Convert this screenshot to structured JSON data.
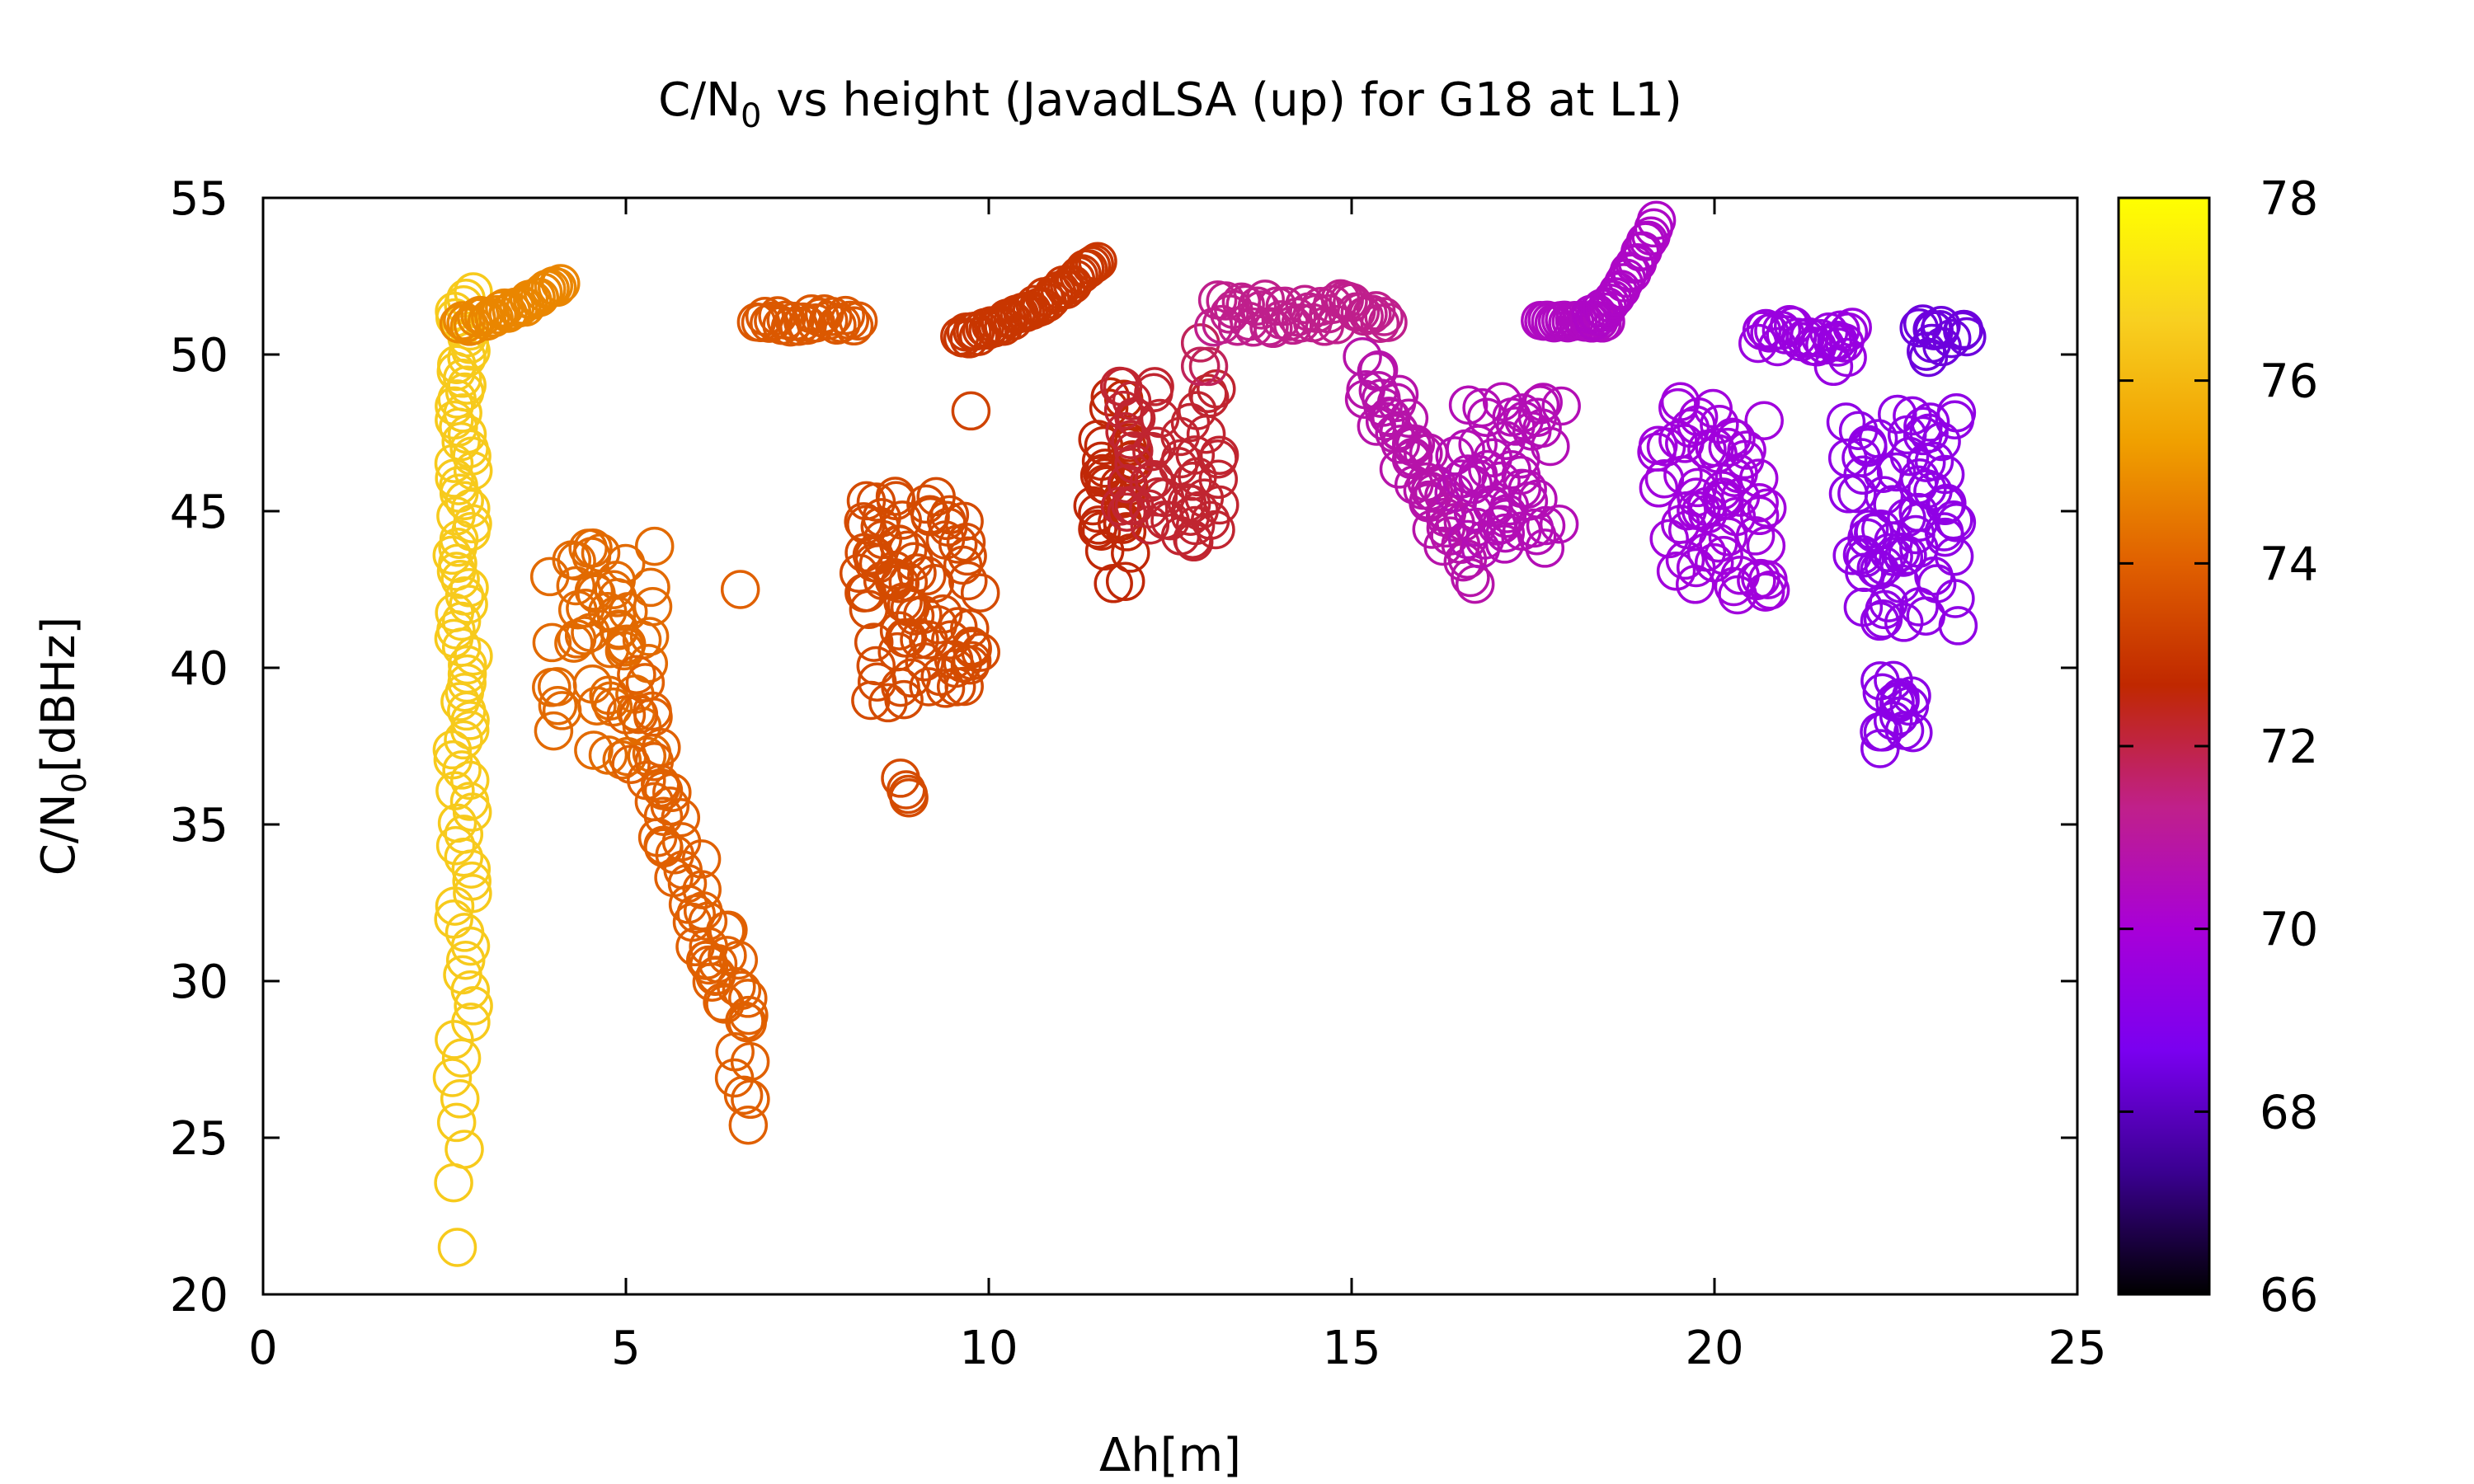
{
  "chart_data": {
    "type": "scatter",
    "title_main": "C/N",
    "title_sub": "0",
    "title_rest": " vs height (JavadLSA (up) for G18 at L1)",
    "xlabel": "Δh[m]",
    "ylabel_main": "C/N",
    "ylabel_sub": "0",
    "ylabel_rest": "[dBHz]",
    "xlim": [
      0,
      25
    ],
    "ylim": [
      20,
      55
    ],
    "xticks": [
      "0",
      "5",
      "10",
      "15",
      "20",
      "25"
    ],
    "yticks": [
      "20",
      "25",
      "30",
      "35",
      "40",
      "45",
      "50",
      "55"
    ],
    "colorbar_range": [
      66,
      78
    ],
    "colorbar_ticks": [
      "66",
      "68",
      "70",
      "72",
      "74",
      "76",
      "78"
    ],
    "colormap": [
      "#000000",
      "#3a0090",
      "#7a00f0",
      "#a800d8",
      "#c0208a",
      "#c02800",
      "#e06000",
      "#f0a000",
      "#f8d020",
      "#ffff00"
    ],
    "grid": false,
    "legend": "none",
    "marker": "open-circle",
    "clusters": [
      {
        "x": [
          2.6,
          2.9
        ],
        "y": [
          21.5,
          52
        ],
        "c": 76.5,
        "n": 90,
        "shape": "column"
      },
      {
        "x": [
          2.7,
          4.1
        ],
        "y": [
          51,
          52.3
        ],
        "c": 74.8,
        "n": 30,
        "shape": "rising"
      },
      {
        "x": [
          3.9,
          5.4
        ],
        "y": [
          37,
          44
        ],
        "c": 74.2,
        "n": 55,
        "shape": "cloud"
      },
      {
        "x": [
          5.1,
          6.8
        ],
        "y": [
          27,
          38.5
        ],
        "c": 74.0,
        "n": 60,
        "shape": "falling"
      },
      {
        "x": [
          6.5,
          6.6
        ],
        "y": [
          42.5,
          42.5
        ],
        "c": 74.0,
        "n": 1,
        "shape": "cloud"
      },
      {
        "x": [
          6.8,
          8.2
        ],
        "y": [
          50.8,
          51.3
        ],
        "c": 73.8,
        "n": 25,
        "shape": "band"
      },
      {
        "x": [
          8.2,
          9.9
        ],
        "y": [
          38.5,
          45.5
        ],
        "c": 73.5,
        "n": 85,
        "shape": "cloud"
      },
      {
        "x": [
          8.6,
          8.9
        ],
        "y": [
          35.5,
          36.6
        ],
        "c": 73.5,
        "n": 4,
        "shape": "cloud"
      },
      {
        "x": [
          9.7,
          9.8
        ],
        "y": [
          48.2,
          48.2
        ],
        "c": 73.3,
        "n": 1,
        "shape": "cloud"
      },
      {
        "x": [
          9.6,
          11.5
        ],
        "y": [
          50.6,
          53
        ],
        "c": 73.0,
        "n": 45,
        "shape": "rising"
      },
      {
        "x": [
          11.4,
          12.0
        ],
        "y": [
          42.5,
          49
        ],
        "c": 72.6,
        "n": 35,
        "shape": "cloud"
      },
      {
        "x": [
          11.8,
          13.2
        ],
        "y": [
          44,
          49
        ],
        "c": 72.2,
        "n": 55,
        "shape": "cloud"
      },
      {
        "x": [
          12.8,
          13.2
        ],
        "y": [
          49.5,
          50.5
        ],
        "c": 71.8,
        "n": 3,
        "shape": "cloud"
      },
      {
        "x": [
          13.1,
          15.5
        ],
        "y": [
          50.8,
          51.8
        ],
        "c": 71.3,
        "n": 45,
        "shape": "band"
      },
      {
        "x": [
          15.2,
          16.6
        ],
        "y": [
          43.5,
          49.5
        ],
        "c": 70.8,
        "n": 50,
        "shape": "falling"
      },
      {
        "x": [
          16.4,
          17.9
        ],
        "y": [
          43.5,
          48.5
        ],
        "c": 70.6,
        "n": 55,
        "shape": "cloud"
      },
      {
        "x": [
          17.6,
          18.5
        ],
        "y": [
          51,
          51.1
        ],
        "c": 70.4,
        "n": 20,
        "shape": "band"
      },
      {
        "x": [
          18.3,
          19.2
        ],
        "y": [
          51.2,
          54.3
        ],
        "c": 70.3,
        "n": 25,
        "shape": "rising"
      },
      {
        "x": [
          19.2,
          20.8
        ],
        "y": [
          42.3,
          48.5
        ],
        "c": 69.8,
        "n": 65,
        "shape": "cloud"
      },
      {
        "x": [
          20.6,
          21.9
        ],
        "y": [
          50.2,
          51
        ],
        "c": 69.6,
        "n": 25,
        "shape": "band"
      },
      {
        "x": [
          21.6,
          21.9
        ],
        "y": [
          49.5,
          50.5
        ],
        "c": 69.5,
        "n": 4,
        "shape": "cloud"
      },
      {
        "x": [
          21.8,
          23.4
        ],
        "y": [
          41,
          48.2
        ],
        "c": 69.3,
        "n": 75,
        "shape": "cloud"
      },
      {
        "x": [
          22.2,
          22.8
        ],
        "y": [
          37.2,
          39.8
        ],
        "c": 69.2,
        "n": 16,
        "shape": "cloud"
      },
      {
        "x": [
          22.8,
          23.5
        ],
        "y": [
          49.8,
          51
        ],
        "c": 68.4,
        "n": 14,
        "shape": "cloud"
      }
    ]
  }
}
